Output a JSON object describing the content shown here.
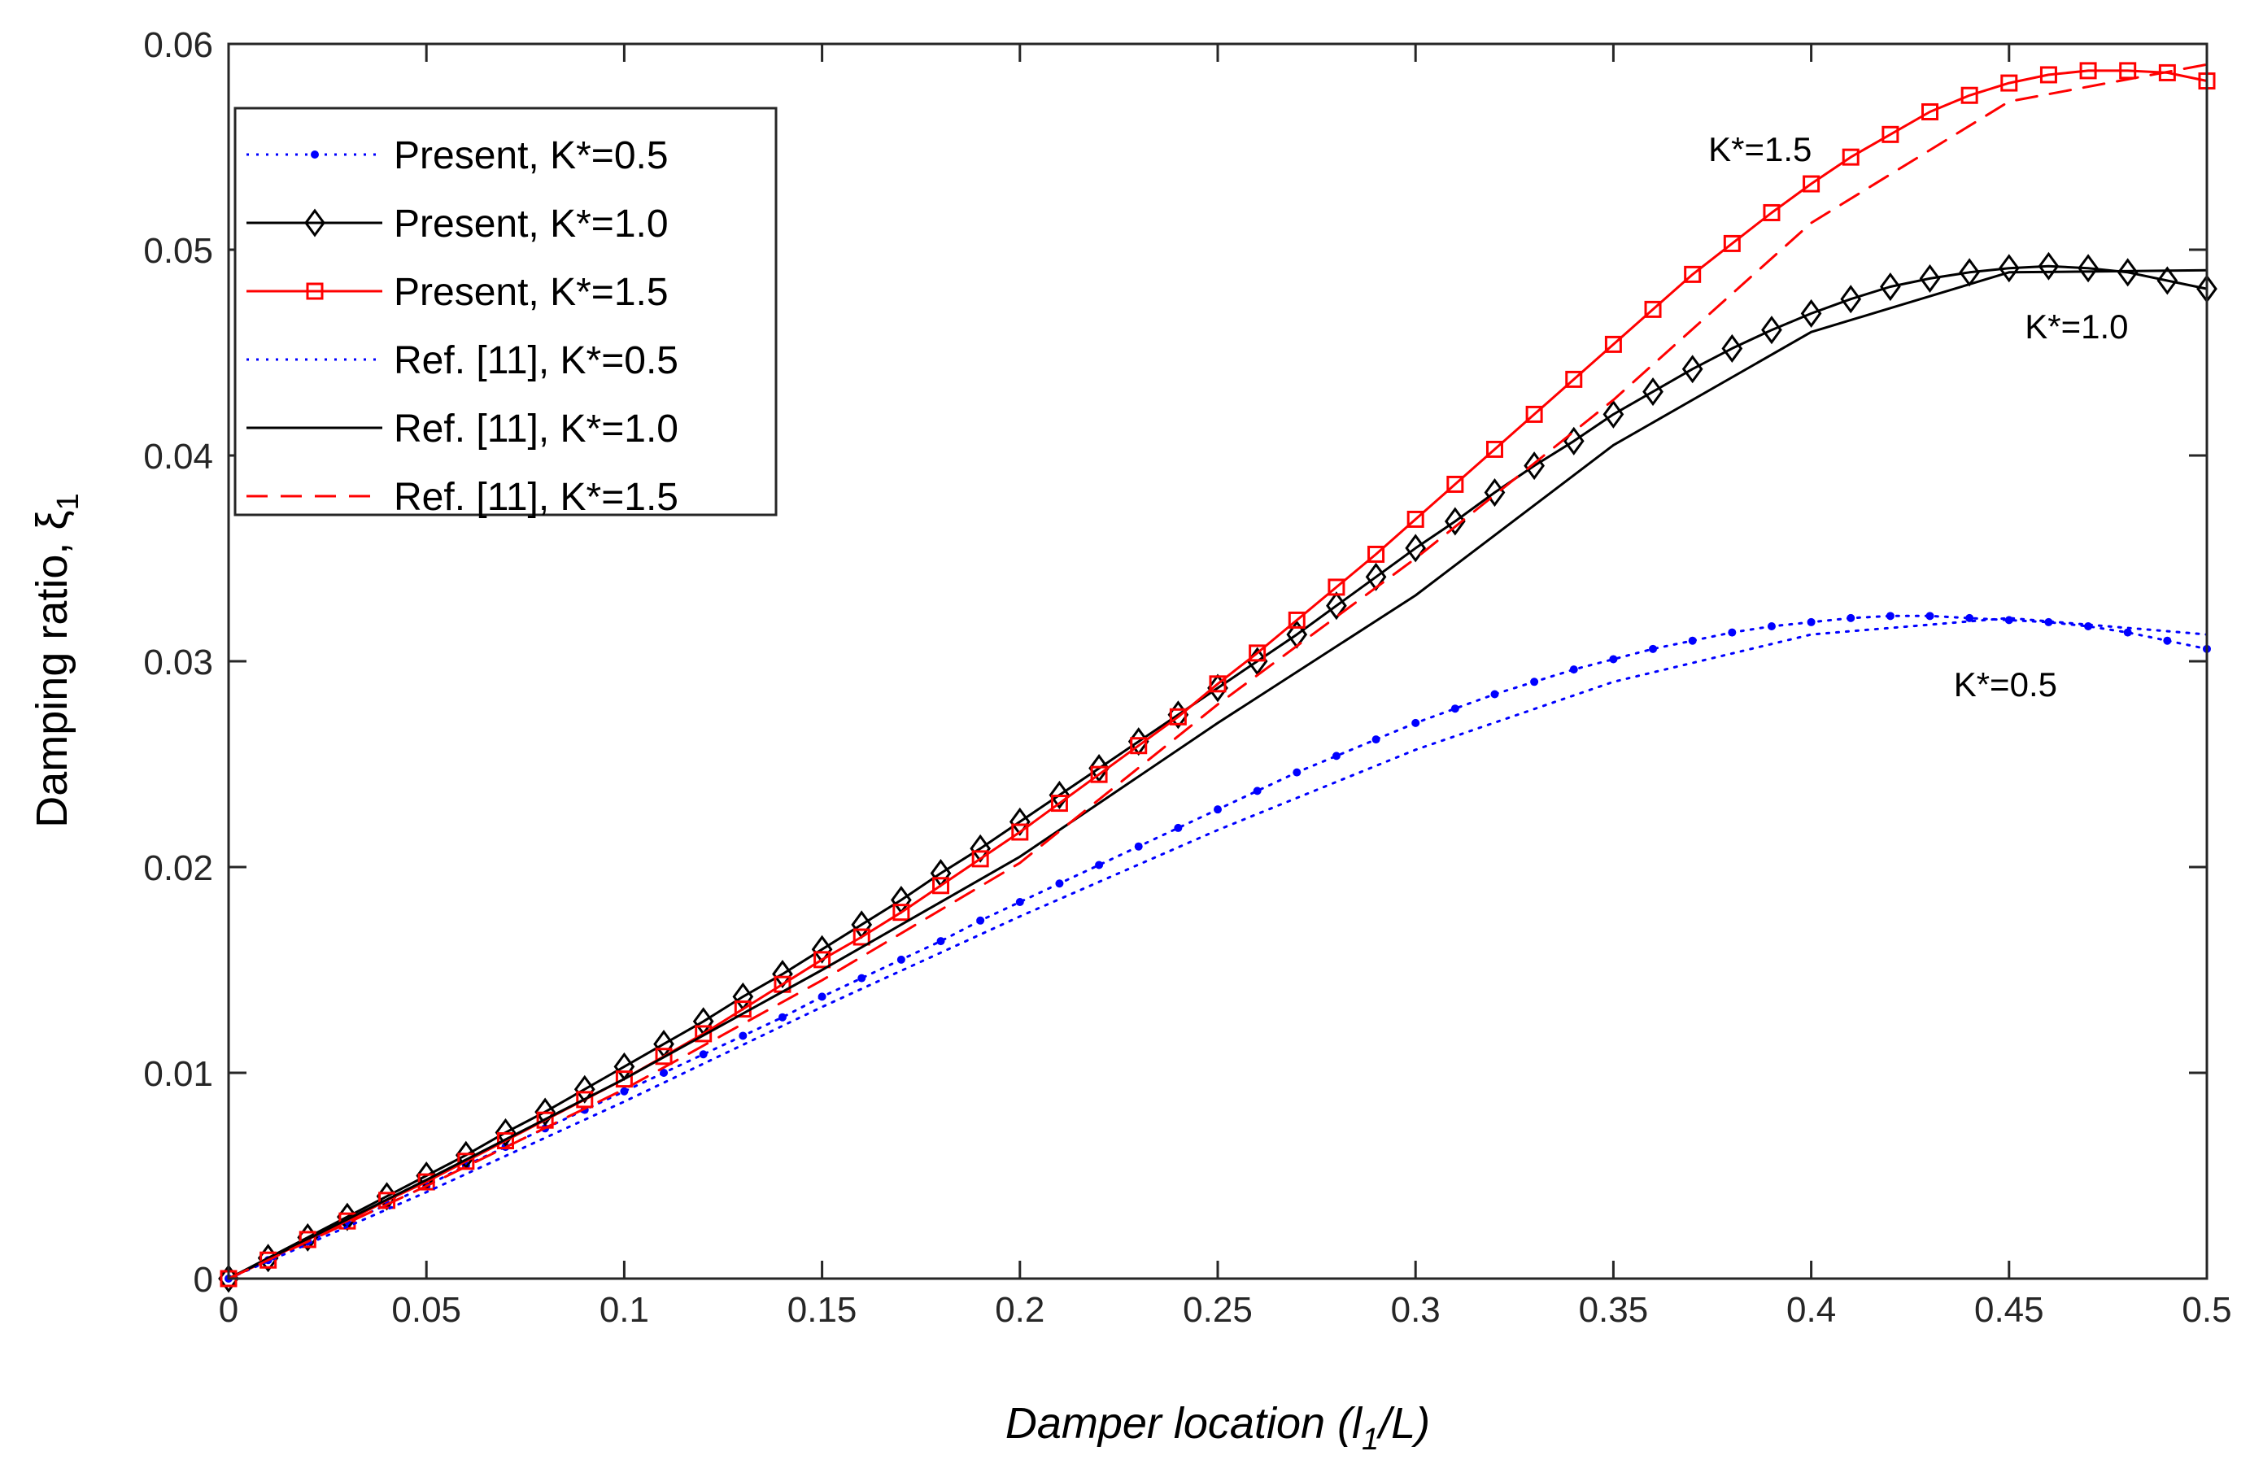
{
  "chart_data": {
    "type": "line",
    "title": "",
    "xlabel": "Damper location  (l₁/L)",
    "xlabel_main": "Damper location  (l",
    "xlabel_sub": "1",
    "xlabel_end": "/L)",
    "ylabel": "Damping ratio,  ξ₁",
    "ylabel_main": "Damping ratio,  ξ",
    "ylabel_sub": "1",
    "xlim": [
      0,
      0.5
    ],
    "ylim": [
      0,
      0.06
    ],
    "xticks": [
      0,
      0.05,
      0.1,
      0.15,
      0.2,
      0.25,
      0.3,
      0.35,
      0.4,
      0.45,
      0.5
    ],
    "xtick_labels": [
      "0",
      "0.05",
      "0.1",
      "0.15",
      "0.2",
      "0.25",
      "0.3",
      "0.35",
      "0.4",
      "0.45",
      "0.5"
    ],
    "yticks": [
      0,
      0.01,
      0.02,
      0.03,
      0.04,
      0.05,
      0.06
    ],
    "ytick_labels": [
      "0",
      "0.01",
      "0.02",
      "0.03",
      "0.04",
      "0.05",
      "0.06"
    ],
    "grid": false,
    "legend_position": "top-left",
    "series": [
      {
        "name": "Present, K*=0.5",
        "color": "#0000ff",
        "style": "dotted",
        "marker": "dot",
        "x": [
          0,
          0.01,
          0.02,
          0.03,
          0.04,
          0.05,
          0.06,
          0.07,
          0.08,
          0.09,
          0.1,
          0.11,
          0.12,
          0.13,
          0.14,
          0.15,
          0.16,
          0.17,
          0.18,
          0.19,
          0.2,
          0.21,
          0.22,
          0.23,
          0.24,
          0.25,
          0.26,
          0.27,
          0.28,
          0.29,
          0.3,
          0.31,
          0.32,
          0.33,
          0.34,
          0.35,
          0.36,
          0.37,
          0.38,
          0.39,
          0.4,
          0.41,
          0.42,
          0.43,
          0.44,
          0.45,
          0.46,
          0.47,
          0.48,
          0.49,
          0.5
        ],
        "y": [
          0,
          0.0009,
          0.0018,
          0.0027,
          0.0036,
          0.0045,
          0.0055,
          0.0064,
          0.0073,
          0.0082,
          0.0091,
          0.01,
          0.0109,
          0.0118,
          0.0127,
          0.0137,
          0.0146,
          0.0155,
          0.0164,
          0.0174,
          0.0183,
          0.0192,
          0.0201,
          0.021,
          0.0219,
          0.0228,
          0.0237,
          0.0246,
          0.0254,
          0.0262,
          0.027,
          0.0277,
          0.0284,
          0.029,
          0.0296,
          0.0301,
          0.0306,
          0.031,
          0.0314,
          0.0317,
          0.0319,
          0.0321,
          0.0322,
          0.0322,
          0.0321,
          0.032,
          0.0319,
          0.0317,
          0.0314,
          0.031,
          0.0306
        ]
      },
      {
        "name": "Present, K*=1.0",
        "color": "#000000",
        "style": "solid",
        "marker": "diamond",
        "x": [
          0,
          0.01,
          0.02,
          0.03,
          0.04,
          0.05,
          0.06,
          0.07,
          0.08,
          0.09,
          0.1,
          0.11,
          0.12,
          0.13,
          0.14,
          0.15,
          0.16,
          0.17,
          0.18,
          0.19,
          0.2,
          0.21,
          0.22,
          0.23,
          0.24,
          0.25,
          0.26,
          0.27,
          0.28,
          0.29,
          0.3,
          0.31,
          0.32,
          0.33,
          0.34,
          0.35,
          0.36,
          0.37,
          0.38,
          0.39,
          0.4,
          0.41,
          0.42,
          0.43,
          0.44,
          0.45,
          0.46,
          0.47,
          0.48,
          0.49,
          0.5
        ],
        "y": [
          0,
          0.001,
          0.002,
          0.003,
          0.004,
          0.005,
          0.006,
          0.0071,
          0.0081,
          0.0092,
          0.0103,
          0.0114,
          0.0125,
          0.0137,
          0.0148,
          0.016,
          0.0172,
          0.0184,
          0.0197,
          0.0209,
          0.0222,
          0.0235,
          0.0248,
          0.0261,
          0.0274,
          0.0287,
          0.03,
          0.0313,
          0.0327,
          0.0341,
          0.0355,
          0.0368,
          0.0382,
          0.0395,
          0.0407,
          0.042,
          0.0431,
          0.0442,
          0.0452,
          0.0461,
          0.0469,
          0.0476,
          0.0482,
          0.0486,
          0.0489,
          0.0491,
          0.0492,
          0.0491,
          0.0489,
          0.0485,
          0.0481
        ]
      },
      {
        "name": "Present, K*=1.5",
        "color": "#ff0000",
        "style": "solid",
        "marker": "square",
        "x": [
          0,
          0.01,
          0.02,
          0.03,
          0.04,
          0.05,
          0.06,
          0.07,
          0.08,
          0.09,
          0.1,
          0.11,
          0.12,
          0.13,
          0.14,
          0.15,
          0.16,
          0.17,
          0.18,
          0.19,
          0.2,
          0.21,
          0.22,
          0.23,
          0.24,
          0.25,
          0.26,
          0.27,
          0.28,
          0.29,
          0.3,
          0.31,
          0.32,
          0.33,
          0.34,
          0.35,
          0.36,
          0.37,
          0.38,
          0.39,
          0.4,
          0.41,
          0.42,
          0.43,
          0.44,
          0.45,
          0.46,
          0.47,
          0.48,
          0.49,
          0.5
        ],
        "y": [
          0,
          0.0009,
          0.0019,
          0.0028,
          0.0038,
          0.0047,
          0.0057,
          0.0067,
          0.0077,
          0.0087,
          0.0097,
          0.0108,
          0.0119,
          0.0131,
          0.0143,
          0.0155,
          0.0166,
          0.0178,
          0.0191,
          0.0204,
          0.0217,
          0.0231,
          0.0245,
          0.0259,
          0.0273,
          0.0289,
          0.0304,
          0.032,
          0.0336,
          0.0352,
          0.0369,
          0.0386,
          0.0403,
          0.042,
          0.0437,
          0.0454,
          0.0471,
          0.0488,
          0.0503,
          0.0518,
          0.0532,
          0.0545,
          0.0556,
          0.0567,
          0.0575,
          0.0581,
          0.0585,
          0.0587,
          0.0587,
          0.0586,
          0.0582
        ]
      },
      {
        "name": "Ref. [11], K*=0.5",
        "color": "#0000ff",
        "style": "dotted",
        "marker": "none",
        "x": [
          0,
          0.05,
          0.1,
          0.15,
          0.2,
          0.25,
          0.3,
          0.35,
          0.4,
          0.45,
          0.5
        ],
        "y": [
          0,
          0.0042,
          0.0086,
          0.0132,
          0.0176,
          0.0218,
          0.0257,
          0.029,
          0.0313,
          0.0321,
          0.0313
        ]
      },
      {
        "name": "Ref. [11], K*=1.0",
        "color": "#000000",
        "style": "solid",
        "marker": "none",
        "x": [
          0,
          0.05,
          0.1,
          0.15,
          0.2,
          0.25,
          0.3,
          0.35,
          0.4,
          0.45,
          0.5
        ],
        "y": [
          0,
          0.0048,
          0.0097,
          0.015,
          0.0205,
          0.027,
          0.0332,
          0.0405,
          0.046,
          0.0489,
          0.049
        ]
      },
      {
        "name": "Ref. [11], K*=1.5",
        "color": "#ff0000",
        "style": "dashed",
        "marker": "none",
        "x": [
          0,
          0.05,
          0.1,
          0.15,
          0.2,
          0.25,
          0.3,
          0.35,
          0.4,
          0.45,
          0.5
        ],
        "y": [
          0,
          0.0045,
          0.0092,
          0.0145,
          0.0202,
          0.0279,
          0.035,
          0.0427,
          0.0513,
          0.0572,
          0.059
        ]
      }
    ],
    "annotations": [
      {
        "text": "K*=1.5",
        "x": 0.374,
        "y": 0.0543
      },
      {
        "text": "K*=1.0",
        "x": 0.454,
        "y": 0.0457
      },
      {
        "text": "K*=0.5",
        "x": 0.436,
        "y": 0.0283
      }
    ]
  }
}
